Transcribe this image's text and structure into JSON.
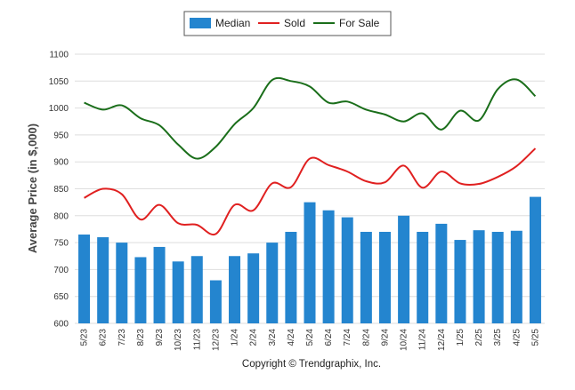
{
  "chart_data": {
    "type": "bar",
    "ylabel": "Average Price (in $,000)",
    "xlabel": "",
    "ylim": [
      600,
      1100
    ],
    "yticks": [
      600,
      650,
      700,
      750,
      800,
      850,
      900,
      950,
      1000,
      1050,
      1100
    ],
    "grid": true,
    "legend_position": "top-center",
    "categories": [
      "5/23",
      "6/23",
      "7/23",
      "8/23",
      "9/23",
      "10/23",
      "11/23",
      "12/23",
      "1/24",
      "2/24",
      "3/24",
      "4/24",
      "5/24",
      "6/24",
      "7/24",
      "8/24",
      "9/24",
      "10/24",
      "11/24",
      "12/24",
      "1/25",
      "2/25",
      "3/25",
      "4/25",
      "5/25"
    ],
    "series": [
      {
        "name": "Median",
        "kind": "bar",
        "color": "#2485cf",
        "values": [
          765,
          760,
          750,
          723,
          742,
          715,
          725,
          680,
          725,
          730,
          750,
          770,
          825,
          810,
          797,
          770,
          770,
          800,
          770,
          785,
          755,
          773,
          770,
          772,
          835
        ]
      },
      {
        "name": "Sold",
        "kind": "line",
        "color": "#e02020",
        "values": [
          833,
          850,
          840,
          793,
          820,
          786,
          783,
          766,
          820,
          810,
          860,
          853,
          906,
          894,
          882,
          864,
          862,
          893,
          852,
          882,
          860,
          859,
          872,
          892,
          925
        ]
      },
      {
        "name": "For Sale",
        "kind": "line",
        "color": "#1a6e1a",
        "values": [
          1010,
          997,
          1005,
          981,
          968,
          932,
          906,
          928,
          970,
          1000,
          1052,
          1050,
          1040,
          1010,
          1012,
          997,
          988,
          975,
          990,
          960,
          995,
          977,
          1035,
          1053,
          1022
        ]
      }
    ]
  },
  "footer": {
    "copyright": "Copyright © Trendgraphix, Inc."
  }
}
